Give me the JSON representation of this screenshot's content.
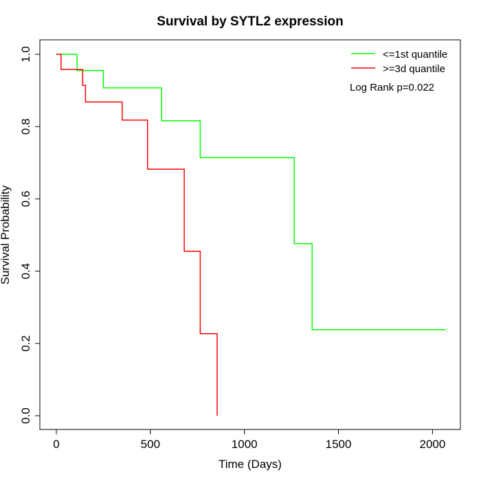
{
  "chart_data": {
    "type": "line",
    "title": "Survival by SYTL2 expression",
    "xlabel": "Time (Days)",
    "ylabel": "Survival Probability",
    "xlim": [
      0,
      2070
    ],
    "ylim": [
      0,
      1
    ],
    "x_ticks": [
      0,
      500,
      1000,
      1500,
      2000
    ],
    "y_ticks": [
      0.0,
      0.2,
      0.4,
      0.6,
      0.8,
      1.0
    ],
    "x_tick_labels": [
      "0",
      "500",
      "1000",
      "1500",
      "2000"
    ],
    "y_tick_labels": [
      "0.0",
      "0.2",
      "0.4",
      "0.6",
      "0.8",
      "1.0"
    ],
    "grid": false,
    "legend_position": "top-right",
    "annotation": "Log Rank p=0.022",
    "series": [
      {
        "name": "<=1st quantile",
        "color": "#00ff00",
        "step": true,
        "x": [
          0,
          110,
          250,
          560,
          765,
          1265,
          1360,
          2070
        ],
        "y": [
          1.0,
          0.955,
          0.907,
          0.816,
          0.714,
          0.476,
          0.238,
          0.238
        ]
      },
      {
        "name": ">=3d quantile",
        "color": "#ff0000",
        "step": true,
        "x": [
          0,
          25,
          140,
          155,
          350,
          485,
          680,
          765,
          855
        ],
        "y": [
          1.0,
          0.958,
          0.914,
          0.868,
          0.818,
          0.682,
          0.455,
          0.227,
          0.0
        ]
      }
    ]
  }
}
